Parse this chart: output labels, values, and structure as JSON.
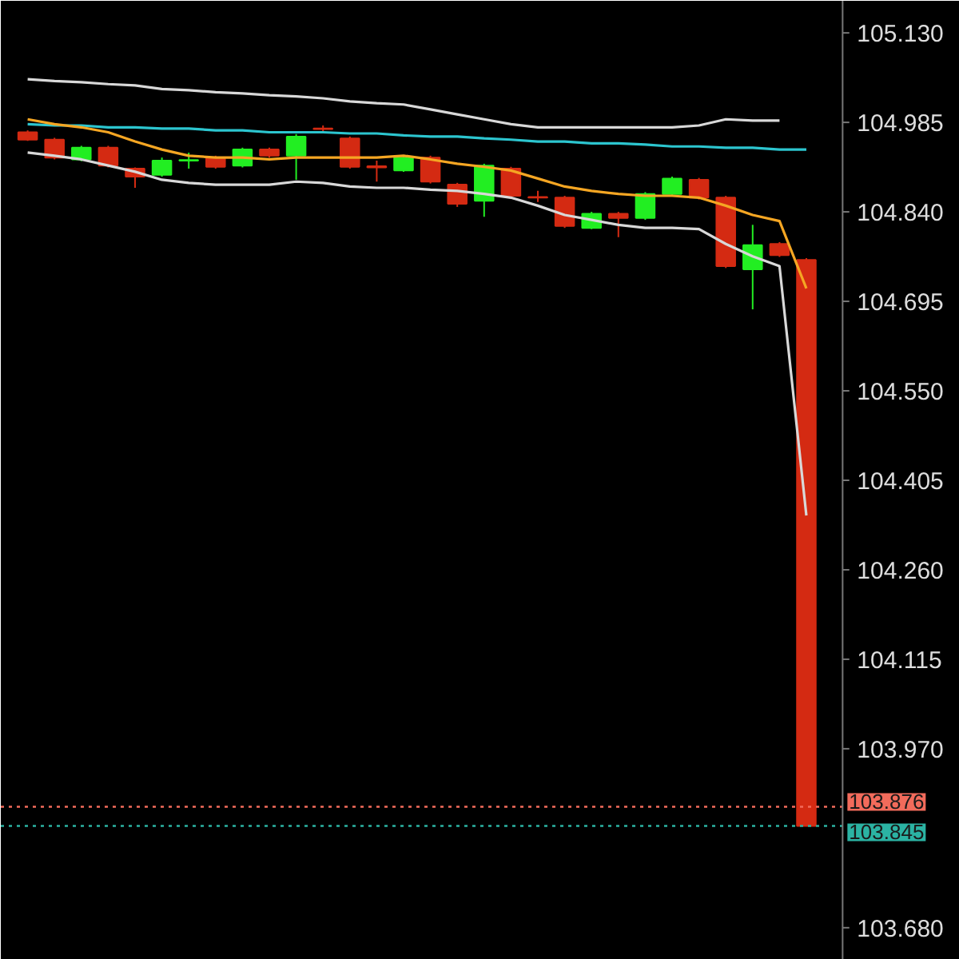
{
  "chart_data": {
    "type": "candlestick",
    "categories": [
      null,
      null,
      null,
      null,
      null,
      null,
      null,
      null,
      null,
      null,
      null,
      null,
      null,
      null,
      null,
      null,
      null,
      null,
      null,
      null,
      null,
      null,
      null,
      null,
      null,
      null,
      null,
      null,
      null,
      null
    ],
    "ohlc": [
      [
        104.969,
        104.972,
        104.955,
        104.957
      ],
      [
        104.957,
        104.96,
        104.925,
        104.928
      ],
      [
        104.925,
        104.947,
        104.922,
        104.944
      ],
      [
        104.944,
        104.947,
        104.912,
        104.915
      ],
      [
        104.91,
        104.912,
        104.879,
        104.897
      ],
      [
        104.9,
        104.928,
        104.897,
        104.923
      ],
      [
        104.923,
        104.936,
        104.91,
        104.924
      ],
      [
        104.928,
        104.931,
        104.91,
        104.913
      ],
      [
        104.915,
        104.944,
        104.912,
        104.941
      ],
      [
        104.941,
        104.944,
        104.928,
        104.931
      ],
      [
        104.931,
        104.966,
        104.892,
        104.962
      ],
      [
        104.975,
        104.98,
        104.97,
        104.974
      ],
      [
        104.959,
        104.962,
        104.91,
        104.913
      ],
      [
        104.914,
        104.923,
        104.889,
        104.912
      ],
      [
        104.907,
        104.931,
        104.905,
        104.928
      ],
      [
        104.928,
        104.931,
        104.886,
        104.889
      ],
      [
        104.884,
        104.887,
        104.848,
        104.853
      ],
      [
        104.858,
        104.918,
        104.832,
        104.915
      ],
      [
        104.91,
        104.913,
        104.863,
        104.866
      ],
      [
        104.864,
        104.874,
        104.856,
        104.863
      ],
      [
        104.863,
        104.866,
        104.814,
        104.817
      ],
      [
        104.814,
        104.84,
        104.812,
        104.837
      ],
      [
        104.837,
        104.84,
        104.799,
        104.83
      ],
      [
        104.83,
        104.872,
        104.827,
        104.869
      ],
      [
        104.869,
        104.897,
        104.866,
        104.894
      ],
      [
        104.892,
        104.895,
        104.86,
        104.863
      ],
      [
        104.863,
        104.866,
        104.749,
        104.752
      ],
      [
        104.747,
        104.819,
        104.682,
        104.786
      ],
      [
        104.788,
        104.791,
        104.767,
        104.77
      ],
      [
        104.762,
        104.765,
        103.845,
        103.845
      ]
    ],
    "colors": [
      "#d42a12",
      "#d42a12",
      "#22ee22",
      "#d42a12",
      "#d42a12",
      "#22ee22",
      "#22ee22",
      "#d42a12",
      "#22ee22",
      "#d42a12",
      "#22ee22",
      "#d42a12",
      "#d42a12",
      "#d42a12",
      "#22ee22",
      "#d42a12",
      "#d42a12",
      "#22ee22",
      "#d42a12",
      "#d42a12",
      "#d42a12",
      "#22ee22",
      "#d42a12",
      "#22ee22",
      "#22ee22",
      "#d42a12",
      "#d42a12",
      "#22ee22",
      "#d42a12",
      "#d42a12"
    ],
    "series": [
      {
        "type": "line",
        "color": "#d8d8d8",
        "values": [
          105.055,
          105.052,
          105.05,
          105.047,
          105.045,
          105.039,
          105.037,
          105.034,
          105.032,
          105.029,
          105.027,
          105.024,
          105.019,
          105.016,
          105.014,
          105.006,
          104.998,
          104.99,
          104.982,
          104.977,
          104.977,
          104.977,
          104.977,
          104.977,
          104.977,
          104.98,
          104.99,
          104.988,
          104.988,
          null
        ]
      },
      {
        "type": "line",
        "color": "#d8d8d8",
        "values": [
          104.936,
          104.931,
          104.925,
          104.915,
          104.905,
          104.892,
          104.887,
          104.884,
          104.884,
          104.884,
          104.889,
          104.887,
          104.881,
          104.879,
          104.879,
          104.876,
          104.874,
          104.869,
          104.863,
          104.85,
          104.835,
          104.827,
          104.819,
          104.814,
          104.814,
          104.812,
          104.788,
          104.768,
          104.752,
          104.348
        ]
      },
      {
        "type": "line",
        "color": "#2cc5cf",
        "values": [
          104.982,
          104.98,
          104.98,
          104.977,
          104.977,
          104.975,
          104.975,
          104.972,
          104.972,
          104.969,
          104.969,
          104.969,
          104.967,
          104.967,
          104.964,
          104.962,
          104.962,
          104.959,
          104.957,
          104.954,
          104.954,
          104.951,
          104.951,
          104.949,
          104.946,
          104.946,
          104.944,
          104.944,
          104.941,
          104.941
        ]
      },
      {
        "type": "line",
        "color": "#f5a623",
        "values": [
          104.99,
          104.982,
          104.977,
          104.969,
          104.954,
          104.941,
          104.931,
          104.928,
          104.928,
          104.925,
          104.928,
          104.928,
          104.928,
          104.928,
          104.931,
          104.925,
          104.918,
          104.913,
          104.907,
          104.894,
          104.881,
          104.874,
          104.869,
          104.866,
          104.866,
          104.863,
          104.85,
          104.835,
          104.825,
          104.716
        ]
      }
    ],
    "ylim": [
      103.628,
      105.182
    ],
    "yticks": [
      {
        "value": 105.13,
        "label": "105.130"
      },
      {
        "value": 104.985,
        "label": "104.985"
      },
      {
        "value": 104.84,
        "label": "104.840"
      },
      {
        "value": 104.695,
        "label": "104.695"
      },
      {
        "value": 104.55,
        "label": "104.550"
      },
      {
        "value": 104.405,
        "label": "104.405"
      },
      {
        "value": 104.26,
        "label": "104.260"
      },
      {
        "value": 104.115,
        "label": "104.115"
      },
      {
        "value": 103.97,
        "label": "103.970"
      },
      {
        "value": 103.68,
        "label": "103.680"
      }
    ],
    "ref_lines": [
      {
        "axis": "y",
        "value": 103.876,
        "label": "103.876",
        "color": "#f26b5b",
        "line_style": "dotted"
      },
      {
        "axis": "y",
        "value": 103.845,
        "label": "103.845",
        "color": "#2bb3a3",
        "line_style": "dotted"
      }
    ],
    "grid": false
  }
}
